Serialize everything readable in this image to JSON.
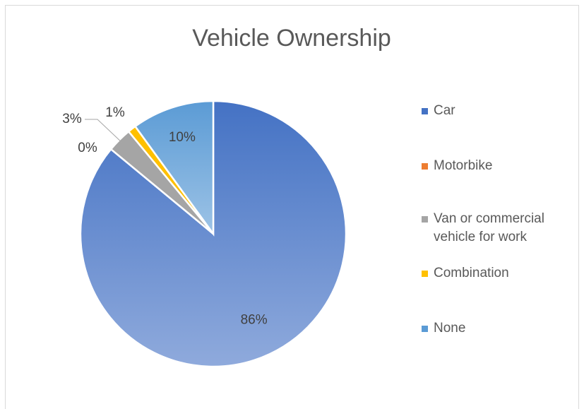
{
  "chart_data": {
    "type": "pie",
    "title": "Vehicle Ownership",
    "categories": [
      "Car",
      "Motorbike",
      "Van or commercial vehicle for work",
      "Combination",
      "None"
    ],
    "values": [
      86,
      0,
      3,
      1,
      10
    ],
    "value_labels": [
      "86%",
      "0%",
      "3%",
      "1%",
      "10%"
    ],
    "colors": [
      "#4472c4",
      "#ed7d31",
      "#a5a5a5",
      "#ffc000",
      "#5b9bd5"
    ],
    "legend": "right"
  }
}
